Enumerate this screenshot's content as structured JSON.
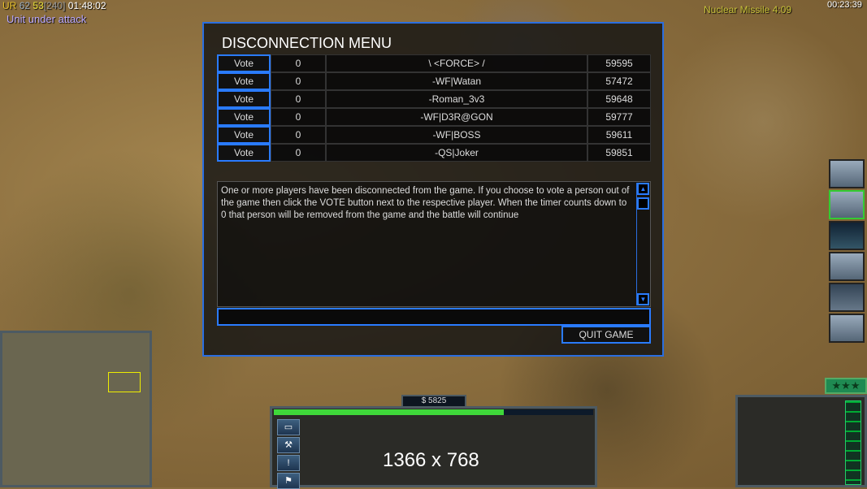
{
  "hud": {
    "stats_prefix": "UR",
    "stat1": "62",
    "stat2": "53",
    "bracket": "[240]",
    "game_time": "01:48:02",
    "alert": "Unit under attack",
    "superweapon": "Nuclear Missile  4:09",
    "clock": "00:23:39"
  },
  "dialog": {
    "title": "DISCONNECTION MENU",
    "vote_label": "Vote",
    "players": [
      {
        "votes": "0",
        "name": "\\ <FORCE> /",
        "ping": "59595"
      },
      {
        "votes": "0",
        "name": "-WF|Watan",
        "ping": "57472"
      },
      {
        "votes": "0",
        "name": "-Roman_3v3",
        "ping": "59648"
      },
      {
        "votes": "0",
        "name": "-WF|D3R@GON",
        "ping": "59777"
      },
      {
        "votes": "0",
        "name": "-WF|BOSS",
        "ping": "59611"
      },
      {
        "votes": "0",
        "name": "-QS|Joker",
        "ping": "59851"
      }
    ],
    "message": "One or more players have been disconnected from the game. If you choose to vote a person out of the game then click the VOTE button next to the respective player. When the timer counts down to 0 that person will be removed from the game and the battle will continue",
    "chat_value": "",
    "quit_label": "QUIT GAME"
  },
  "control_bar": {
    "money": "$ 5825",
    "power_fraction": 0.72,
    "resolution_overlay": "1366 x 768",
    "rank_stars": "★★★"
  },
  "colors": {
    "accent": "#2a7bff",
    "power": "#3fd83a",
    "alert": "#b9a8ff",
    "superweapon": "#c9c23a"
  }
}
